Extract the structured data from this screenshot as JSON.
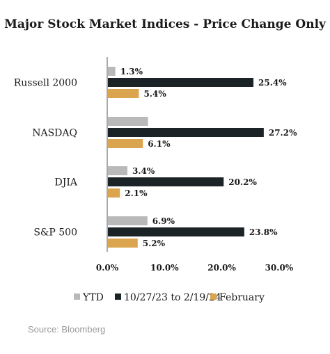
{
  "chart_data": {
    "type": "bar",
    "orientation": "horizontal",
    "title": "Major Stock Market Indices - Price Change Only",
    "categories": [
      "Russell 2000",
      "NASDAQ",
      "DJIA",
      "S&P 500"
    ],
    "series": [
      {
        "name": "YTD",
        "color": "#b9b9b9",
        "values": [
          1.3,
          7.0,
          3.4,
          6.9
        ],
        "labels": [
          "1.3%",
          "",
          "3.4%",
          "6.9%"
        ]
      },
      {
        "name": "10/27/23 to 2/19/24",
        "color": "#1c2327",
        "values": [
          25.4,
          27.2,
          20.2,
          23.8
        ],
        "labels": [
          "25.4%",
          "27.2%",
          "20.2%",
          "23.8%"
        ]
      },
      {
        "name": "February",
        "color": "#dba54f",
        "values": [
          5.4,
          6.1,
          2.1,
          5.2
        ],
        "labels": [
          "5.4%",
          "6.1%",
          "2.1%",
          "5.2%"
        ]
      }
    ],
    "xlim": [
      0,
      30
    ],
    "x_ticks": [
      "0.0%",
      "10.0%",
      "20.0%",
      "30.0%"
    ],
    "grid": false,
    "legend_position": "bottom",
    "source": "Source: Bloomberg"
  }
}
